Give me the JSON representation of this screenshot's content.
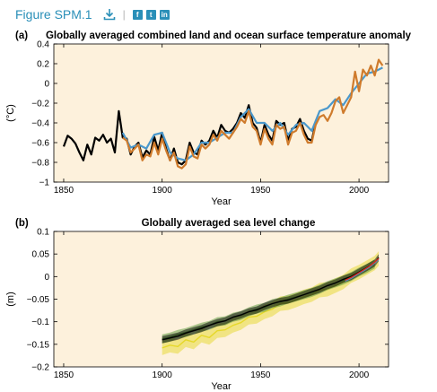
{
  "header": {
    "figure_title": "Figure SPM.1",
    "download_icon": "download-icon",
    "share_icons": [
      "f",
      "t",
      "in"
    ]
  },
  "colors": {
    "plot_bg": "#fdf1dc",
    "black": "#000000",
    "orange": "#cf7b2c",
    "blue": "#4a98cc",
    "yellow": "#e6d82a",
    "green": "#5a9a3a",
    "gray": "#8c8c8c",
    "red": "#d82a1e"
  },
  "chart_data": [
    {
      "type": "line",
      "panel": "(a)",
      "title": "Globally averaged combined land and ocean surface temperature anomaly",
      "xlabel": "Year",
      "ylabel": "(°C)",
      "xlim": [
        1845,
        2015
      ],
      "ylim": [
        -1.0,
        0.4
      ],
      "xticks": [
        1850,
        1900,
        1950,
        2000
      ],
      "yticks": [
        -1,
        -0.8,
        -0.6,
        -0.4,
        -0.2,
        0,
        0.2,
        0.4
      ],
      "ytick_labels": [
        "−1",
        "−0.8",
        "−0.6",
        "−0.4",
        "−0.2",
        "0",
        "0.2",
        "0.4"
      ],
      "grid": false,
      "series": [
        {
          "color": "#000000",
          "x": [
            1850,
            1852,
            1854,
            1856,
            1858,
            1860,
            1862,
            1864,
            1866,
            1868,
            1870,
            1872,
            1874,
            1876,
            1878,
            1880,
            1882,
            1884,
            1886,
            1888,
            1890,
            1892,
            1894,
            1896,
            1898,
            1900,
            1902,
            1904,
            1906,
            1908,
            1910,
            1912,
            1914,
            1916,
            1918,
            1920,
            1922,
            1924,
            1926,
            1928,
            1930,
            1932,
            1934,
            1936,
            1938,
            1940,
            1942,
            1944,
            1946,
            1948,
            1950,
            1952,
            1954,
            1956,
            1958,
            1960,
            1962,
            1964,
            1966,
            1968,
            1970,
            1972,
            1974,
            1976,
            1978
          ],
          "y": [
            -0.64,
            -0.53,
            -0.56,
            -0.61,
            -0.7,
            -0.78,
            -0.62,
            -0.72,
            -0.55,
            -0.58,
            -0.52,
            -0.6,
            -0.56,
            -0.7,
            -0.28,
            -0.55,
            -0.56,
            -0.72,
            -0.64,
            -0.6,
            -0.75,
            -0.68,
            -0.72,
            -0.54,
            -0.68,
            -0.5,
            -0.66,
            -0.78,
            -0.66,
            -0.8,
            -0.82,
            -0.78,
            -0.6,
            -0.7,
            -0.72,
            -0.58,
            -0.62,
            -0.58,
            -0.48,
            -0.55,
            -0.42,
            -0.48,
            -0.5,
            -0.46,
            -0.4,
            -0.3,
            -0.35,
            -0.22,
            -0.4,
            -0.45,
            -0.6,
            -0.42,
            -0.52,
            -0.58,
            -0.38,
            -0.42,
            -0.4,
            -0.58,
            -0.46,
            -0.44,
            -0.36,
            -0.48,
            -0.56,
            -0.58,
            -0.4
          ]
        },
        {
          "color": "#4a98cc",
          "x": [
            1880,
            1884,
            1888,
            1892,
            1896,
            1900,
            1904,
            1908,
            1912,
            1916,
            1920,
            1924,
            1928,
            1932,
            1936,
            1940,
            1944,
            1948,
            1952,
            1956,
            1960,
            1964,
            1968,
            1972,
            1976,
            1980,
            1984,
            1988,
            1992,
            1996,
            2000,
            2004,
            2008,
            2012
          ],
          "y": [
            -0.5,
            -0.65,
            -0.62,
            -0.66,
            -0.52,
            -0.5,
            -0.7,
            -0.76,
            -0.78,
            -0.72,
            -0.6,
            -0.6,
            -0.55,
            -0.5,
            -0.5,
            -0.34,
            -0.26,
            -0.4,
            -0.4,
            -0.48,
            -0.4,
            -0.52,
            -0.42,
            -0.4,
            -0.48,
            -0.28,
            -0.25,
            -0.16,
            -0.22,
            -0.1,
            0.0,
            0.1,
            0.12,
            0.16
          ]
        },
        {
          "color": "#cf7b2c",
          "x": [
            1880,
            1882,
            1884,
            1886,
            1888,
            1890,
            1892,
            1894,
            1896,
            1898,
            1900,
            1902,
            1904,
            1906,
            1908,
            1910,
            1912,
            1914,
            1916,
            1918,
            1920,
            1922,
            1924,
            1926,
            1928,
            1930,
            1932,
            1934,
            1936,
            1938,
            1940,
            1942,
            1944,
            1946,
            1948,
            1950,
            1952,
            1954,
            1956,
            1958,
            1960,
            1962,
            1964,
            1966,
            1968,
            1970,
            1972,
            1974,
            1976,
            1978,
            1980,
            1982,
            1984,
            1986,
            1988,
            1990,
            1992,
            1994,
            1996,
            1998,
            2000,
            2002,
            2004,
            2006,
            2008,
            2010,
            2012
          ],
          "y": [
            -0.55,
            -0.58,
            -0.7,
            -0.66,
            -0.62,
            -0.78,
            -0.72,
            -0.74,
            -0.6,
            -0.72,
            -0.56,
            -0.68,
            -0.78,
            -0.7,
            -0.84,
            -0.86,
            -0.82,
            -0.64,
            -0.74,
            -0.76,
            -0.62,
            -0.66,
            -0.62,
            -0.52,
            -0.58,
            -0.48,
            -0.52,
            -0.56,
            -0.5,
            -0.44,
            -0.36,
            -0.4,
            -0.28,
            -0.44,
            -0.48,
            -0.62,
            -0.46,
            -0.56,
            -0.62,
            -0.42,
            -0.46,
            -0.44,
            -0.62,
            -0.5,
            -0.48,
            -0.4,
            -0.52,
            -0.6,
            -0.6,
            -0.42,
            -0.34,
            -0.32,
            -0.38,
            -0.3,
            -0.18,
            -0.14,
            -0.3,
            -0.22,
            -0.14,
            0.12,
            -0.08,
            0.14,
            0.08,
            0.18,
            0.08,
            0.24,
            0.18
          ]
        }
      ]
    },
    {
      "type": "line",
      "panel": "(b)",
      "title": "Globally averaged sea level change",
      "xlabel": "Year",
      "ylabel": "(m)",
      "xlim": [
        1845,
        2015
      ],
      "ylim": [
        -0.2,
        0.1
      ],
      "xticks": [
        1850,
        1900,
        1950,
        2000
      ],
      "yticks": [
        -0.2,
        -0.15,
        -0.1,
        -0.05,
        0,
        0.05,
        0.1
      ],
      "ytick_labels": [
        "−0.2",
        "−0.15",
        "−0.1",
        "−0.05",
        "0",
        "0.05",
        "0.1"
      ],
      "grid": false,
      "series": [
        {
          "color": "#e6d82a",
          "band": 0.016,
          "x": [
            1900,
            1904,
            1908,
            1912,
            1916,
            1920,
            1924,
            1928,
            1932,
            1936,
            1940,
            1944,
            1948,
            1952,
            1956,
            1960,
            1964,
            1968,
            1972,
            1976,
            1980,
            1984,
            1988,
            1992,
            1996,
            2000,
            2004,
            2008,
            2010
          ],
          "y": [
            -0.158,
            -0.152,
            -0.155,
            -0.14,
            -0.145,
            -0.13,
            -0.135,
            -0.12,
            -0.118,
            -0.108,
            -0.102,
            -0.09,
            -0.088,
            -0.078,
            -0.072,
            -0.06,
            -0.058,
            -0.052,
            -0.045,
            -0.04,
            -0.03,
            -0.028,
            -0.02,
            -0.012,
            0.002,
            0.01,
            0.02,
            0.03,
            0.04
          ]
        },
        {
          "color": "#5a9a3a",
          "band": 0.01,
          "x": [
            1900,
            1904,
            1908,
            1912,
            1916,
            1920,
            1924,
            1928,
            1932,
            1936,
            1940,
            1944,
            1948,
            1952,
            1956,
            1960,
            1964,
            1968,
            1972,
            1976,
            1980,
            1984,
            1988,
            1992,
            1996,
            2000,
            2004,
            2008
          ],
          "y": [
            -0.138,
            -0.134,
            -0.128,
            -0.124,
            -0.118,
            -0.112,
            -0.108,
            -0.1,
            -0.098,
            -0.09,
            -0.086,
            -0.078,
            -0.072,
            -0.068,
            -0.06,
            -0.056,
            -0.05,
            -0.045,
            -0.04,
            -0.035,
            -0.028,
            -0.02,
            -0.014,
            -0.008,
            0.0,
            0.01,
            0.018,
            0.028
          ]
        },
        {
          "color": "#000000",
          "band": 0.008,
          "x": [
            1900,
            1904,
            1908,
            1912,
            1916,
            1920,
            1924,
            1928,
            1932,
            1936,
            1940,
            1944,
            1948,
            1952,
            1956,
            1960,
            1964,
            1968,
            1972,
            1976,
            1980,
            1984,
            1988,
            1992,
            1996,
            2000,
            2004,
            2008,
            2010
          ],
          "y": [
            -0.14,
            -0.136,
            -0.132,
            -0.125,
            -0.12,
            -0.115,
            -0.108,
            -0.102,
            -0.098,
            -0.09,
            -0.085,
            -0.078,
            -0.074,
            -0.066,
            -0.06,
            -0.055,
            -0.052,
            -0.046,
            -0.04,
            -0.034,
            -0.028,
            -0.02,
            -0.014,
            -0.006,
            0.0,
            0.01,
            0.02,
            0.03,
            0.042
          ]
        },
        {
          "color": "#4a98cc",
          "band": 0.0,
          "x": [
            1993,
            1996,
            1999,
            2002,
            2005,
            2008,
            2010
          ],
          "y": [
            -0.01,
            -0.004,
            0.004,
            0.012,
            0.02,
            0.03,
            0.038
          ]
        },
        {
          "color": "#d82a1e",
          "band": 0.0,
          "x": [
            1993,
            1996,
            1999,
            2002,
            2005,
            2008,
            2010
          ],
          "y": [
            -0.008,
            -0.002,
            0.006,
            0.014,
            0.022,
            0.032,
            0.04
          ]
        }
      ]
    }
  ]
}
